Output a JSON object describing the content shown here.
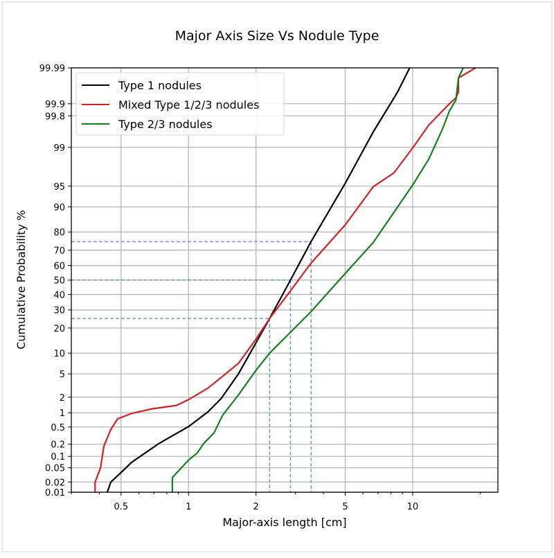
{
  "chart_data": {
    "type": "line",
    "title": "Major Axis Size Vs Nodule Type",
    "xlabel": "Major-axis length [cm]",
    "ylabel": "Cumulative Probability %",
    "x_scale": "log",
    "y_scale": "probability (normal quantile)",
    "xlim": [
      0.3,
      24
    ],
    "ylim": [
      0.01,
      99.99
    ],
    "grid": true,
    "legend_position": "top-left",
    "x_ticks": [
      "0.5",
      "1",
      "2",
      "5",
      "10"
    ],
    "x_tick_values": [
      0.5,
      1,
      2,
      5,
      10
    ],
    "x_minor_ticks": [
      0.3,
      0.4,
      0.6,
      0.7,
      0.8,
      0.9,
      3,
      4,
      6,
      7,
      8,
      9,
      20
    ],
    "y_ticks": [
      "0.01",
      "0.02",
      "0.05",
      "0.1",
      "0.2",
      "0.5",
      "1",
      "2",
      "5",
      "10",
      "20",
      "30",
      "40",
      "50",
      "60",
      "70",
      "80",
      "90",
      "95",
      "99",
      "99.8",
      "99.9",
      "99.99"
    ],
    "y_tick_values": [
      0.01,
      0.02,
      0.05,
      0.1,
      0.2,
      0.5,
      1,
      2,
      5,
      10,
      20,
      30,
      40,
      50,
      60,
      70,
      80,
      90,
      95,
      99,
      99.8,
      99.9,
      99.99
    ],
    "reference_lines": {
      "color": "#6a93cf",
      "style": "dashed",
      "percentiles": [
        25,
        50,
        75
      ],
      "type1_x": [
        2.3,
        2.85,
        3.52
      ]
    },
    "series": [
      {
        "name": "Type 1 nodules",
        "color": "#000000",
        "points": [
          [
            0.434,
            0.01
          ],
          [
            0.45,
            0.02
          ],
          [
            0.5,
            0.037
          ],
          [
            0.557,
            0.07
          ],
          [
            0.74,
            0.21
          ],
          [
            1.0,
            0.51
          ],
          [
            1.22,
            1.04
          ],
          [
            1.4,
            1.9
          ],
          [
            1.67,
            5
          ],
          [
            2.0,
            13.6
          ],
          [
            2.3,
            25
          ],
          [
            2.85,
            50
          ],
          [
            3.52,
            75
          ],
          [
            5.0,
            95.5
          ],
          [
            6.67,
            99.53
          ],
          [
            8.55,
            99.95
          ],
          [
            9.7,
            99.99
          ]
        ]
      },
      {
        "name": "Mixed Type 1/2/3 nodules",
        "color": "#d62020",
        "points": [
          [
            0.383,
            0.01
          ],
          [
            0.383,
            0.02
          ],
          [
            0.405,
            0.05
          ],
          [
            0.419,
            0.18
          ],
          [
            0.45,
            0.44
          ],
          [
            0.483,
            0.75
          ],
          [
            0.557,
            0.97
          ],
          [
            0.689,
            1.2
          ],
          [
            0.883,
            1.4
          ],
          [
            1.0,
            1.8
          ],
          [
            1.22,
            2.9
          ],
          [
            1.4,
            4.4
          ],
          [
            1.67,
            7.2
          ],
          [
            2.0,
            15
          ],
          [
            2.3,
            25
          ],
          [
            2.85,
            42.5
          ],
          [
            3.52,
            61.7
          ],
          [
            5.0,
            83.3
          ],
          [
            6.67,
            94.9
          ],
          [
            8.26,
            97
          ],
          [
            10.2,
            99.09
          ],
          [
            11.8,
            99.67
          ],
          [
            14.6,
            99.9
          ],
          [
            15.6,
            99.93
          ],
          [
            16.0,
            99.95
          ],
          [
            16.0,
            99.98
          ],
          [
            19.1,
            99.99
          ]
        ]
      },
      {
        "name": "Type 2/3 nodules",
        "color": "#13801a",
        "points": [
          [
            0.847,
            0.01
          ],
          [
            0.847,
            0.027
          ],
          [
            1.0,
            0.08
          ],
          [
            1.09,
            0.12
          ],
          [
            1.17,
            0.21
          ],
          [
            1.3,
            0.37
          ],
          [
            1.42,
            0.89
          ],
          [
            1.67,
            2.2
          ],
          [
            2.0,
            5.7
          ],
          [
            2.3,
            10
          ],
          [
            2.85,
            18
          ],
          [
            3.52,
            29
          ],
          [
            5.0,
            54.6
          ],
          [
            6.67,
            74.5
          ],
          [
            10,
            95.2
          ],
          [
            11.8,
            98.3
          ],
          [
            13.6,
            99.6
          ],
          [
            14.6,
            99.85
          ],
          [
            15.6,
            99.92
          ],
          [
            16.0,
            99.98
          ],
          [
            16.8,
            99.99
          ]
        ]
      }
    ]
  }
}
